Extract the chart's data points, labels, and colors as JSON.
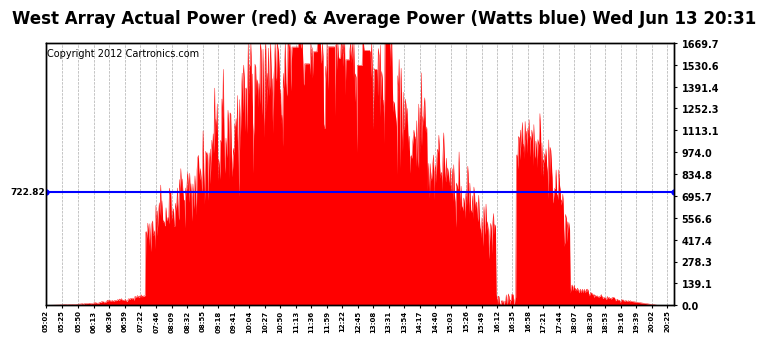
{
  "title": "West Array Actual Power (red) & Average Power (Watts blue) Wed Jun 13 20:31",
  "copyright_text": "Copyright 2012 Cartronics.com",
  "avg_power": 722.82,
  "ymax": 1669.7,
  "ymin": 0.0,
  "yticks": [
    0.0,
    139.1,
    278.3,
    417.4,
    556.6,
    695.7,
    834.8,
    974.0,
    1113.1,
    1252.3,
    1391.4,
    1530.6,
    1669.7
  ],
  "fill_color": "#FF0000",
  "line_color": "#0000FF",
  "background_color": "#FFFFFF",
  "grid_color": "#999999",
  "title_fontsize": 12,
  "copyright_fontsize": 7
}
